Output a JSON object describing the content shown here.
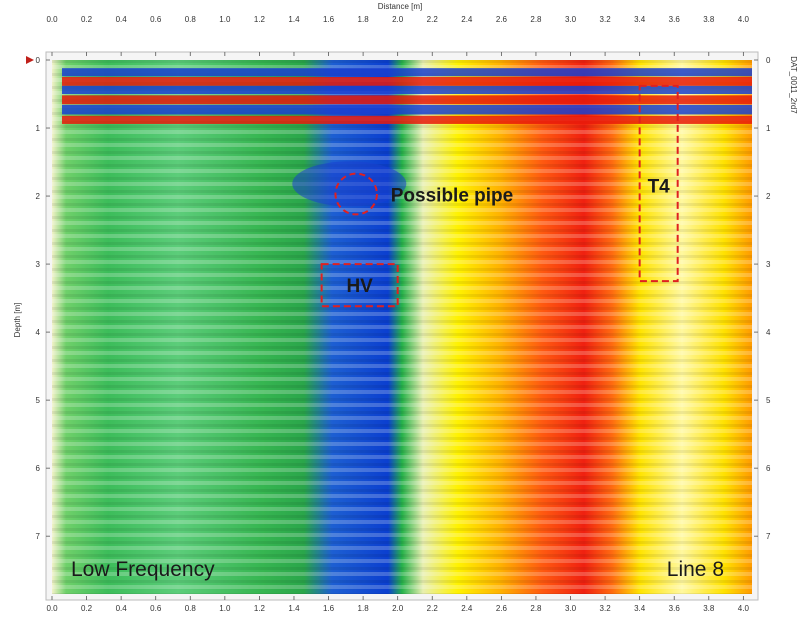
{
  "chart_data": {
    "type": "heatmap",
    "xlabel": "Distance [m]",
    "ylabel": "Depth [m]",
    "xlim": [
      0.0,
      4.05
    ],
    "ylim": [
      0.0,
      7.85
    ],
    "x_ticks": [
      "0.0",
      "0.2",
      "0.4",
      "0.6",
      "0.8",
      "1.0",
      "1.2",
      "1.4",
      "1.6",
      "1.8",
      "2.0",
      "2.2",
      "2.4",
      "2.6",
      "2.8",
      "3.0",
      "3.2",
      "3.4",
      "3.6",
      "3.8",
      "4.0"
    ],
    "y_ticks": [
      "0",
      "1",
      "2",
      "3",
      "4",
      "5",
      "6",
      "7"
    ],
    "file_label": "DAT_0011_2rd7",
    "colormap": [
      "#0a2fc8",
      "#1aa83c",
      "#f5f5c8",
      "#ffe800",
      "#e81a0a"
    ],
    "zones": [
      {
        "x": [
          0.0,
          1.55
        ],
        "signal": "green (low)"
      },
      {
        "x": [
          1.55,
          2.0
        ],
        "signal": "blue (strongest low)"
      },
      {
        "x": [
          2.2,
          2.45
        ],
        "signal": "yellow"
      },
      {
        "x": [
          2.5,
          3.25
        ],
        "signal": "red (high)"
      },
      {
        "x": [
          3.4,
          4.05
        ],
        "signal": "yellow"
      }
    ],
    "annotations": [
      {
        "text": "Possible pipe",
        "shape": "circle",
        "x": 1.76,
        "y": 1.97,
        "rx": 0.12,
        "ry": 0.3
      },
      {
        "text": "HV",
        "shape": "rect",
        "x": [
          1.56,
          2.0
        ],
        "y": [
          3.0,
          3.62
        ]
      },
      {
        "text": "T4",
        "shape": "rect",
        "x": [
          3.4,
          3.62
        ],
        "y": [
          0.38,
          3.25
        ]
      }
    ],
    "corner_labels": {
      "left": "Low Frequency",
      "right": "Line 8"
    },
    "grid": false
  },
  "colors": {
    "annotation": "#e02020"
  }
}
